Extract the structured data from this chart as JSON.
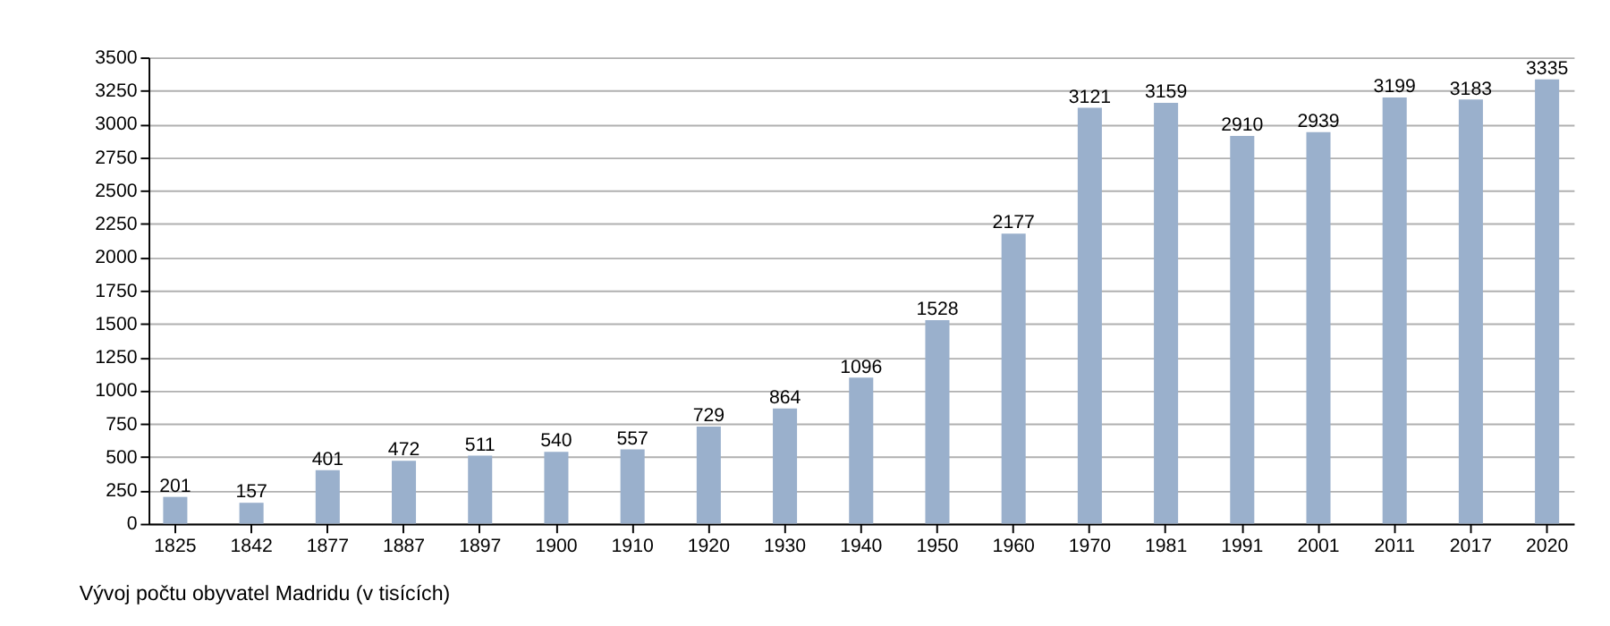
{
  "chart_data": {
    "type": "bar",
    "categories": [
      "1825",
      "1842",
      "1877",
      "1887",
      "1897",
      "1900",
      "1910",
      "1920",
      "1930",
      "1940",
      "1950",
      "1960",
      "1970",
      "1981",
      "1991",
      "2001",
      "2011",
      "2017",
      "2020"
    ],
    "values": [
      201,
      157,
      401,
      472,
      511,
      540,
      557,
      729,
      864,
      1096,
      1528,
      2177,
      3121,
      3159,
      2910,
      2939,
      3199,
      3183,
      3335
    ],
    "color": "#9ab0cc",
    "ylim": [
      0,
      3500
    ],
    "yticks": [
      0,
      250,
      500,
      750,
      1000,
      1250,
      1500,
      1750,
      2000,
      2250,
      2500,
      2750,
      3000,
      3250,
      3500
    ],
    "grid": "y",
    "data_labels": true,
    "annotations": [
      "Vývoj počtu obyvatel Madridu (v tisících)"
    ]
  }
}
